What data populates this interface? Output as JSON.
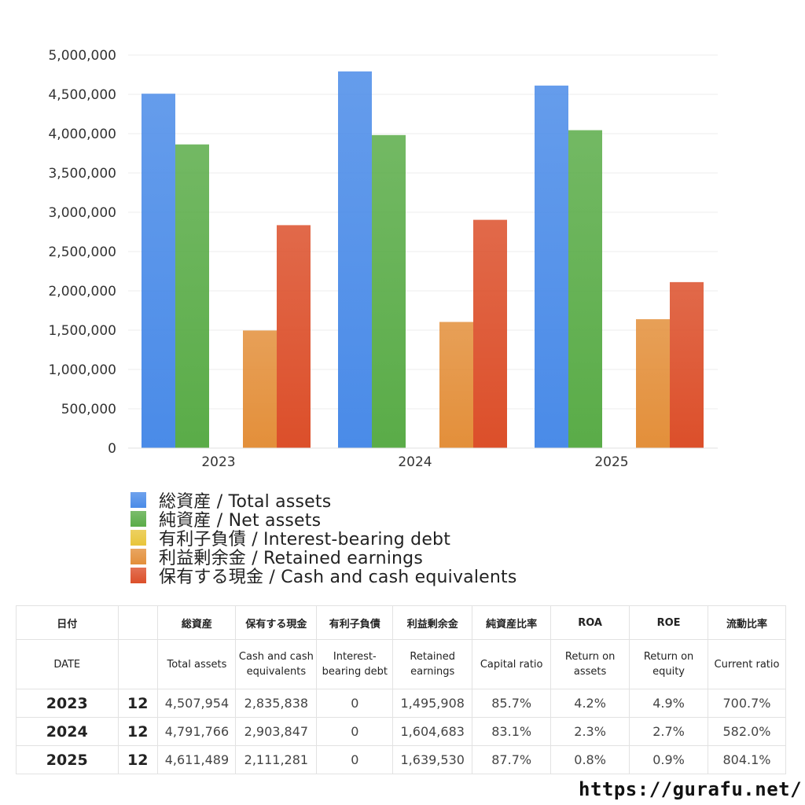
{
  "chart_data": {
    "type": "bar",
    "categories": [
      "2023",
      "2024",
      "2025"
    ],
    "series": [
      {
        "name": "総資産 / Total assets",
        "values": [
          4507954,
          4791766,
          4611489
        ],
        "color": "#4a8be8"
      },
      {
        "name": "純資産 / Net assets",
        "values": [
          3863000,
          3982000,
          4044000
        ],
        "color": "#5aac48"
      },
      {
        "name": "有利子負債 / Interest-bearing debt",
        "values": [
          0,
          0,
          0
        ],
        "color": "#e8c53a"
      },
      {
        "name": "利益剰余金 / Retained earnings",
        "values": [
          1495908,
          1604683,
          1639530
        ],
        "color": "#e38f3a"
      },
      {
        "name": "保有する現金 /  Cash and cash equivalents",
        "values": [
          2835838,
          2903847,
          2111281
        ],
        "color": "#dc4f2a"
      }
    ],
    "ylim": [
      0,
      5000000
    ],
    "yticks": [
      "0",
      "500,000",
      "1,000,000",
      "1,500,000",
      "2,000,000",
      "2,500,000",
      "3,000,000",
      "3,500,000",
      "4,000,000",
      "4,500,000",
      "5,000,000"
    ],
    "grid": true,
    "legend_position": "bottom-left"
  },
  "table": {
    "headers_ja": [
      "日付",
      "",
      "総資産",
      "保有する現金",
      "有利子負債",
      "利益剰余金",
      "純資産比率",
      "ROA",
      "ROE",
      "流動比率"
    ],
    "headers_en": [
      "DATE",
      "",
      "Total assets",
      "Cash and cash equivalents",
      "Interest-bearing debt",
      "Retained earnings",
      "Capital ratio",
      "Return on assets",
      "Return on equity",
      "Current ratio"
    ],
    "rows": [
      [
        "2023",
        "12",
        "4,507,954",
        "2,835,838",
        "0",
        "1,495,908",
        "85.7%",
        "4.2%",
        "4.9%",
        "700.7%"
      ],
      [
        "2024",
        "12",
        "4,791,766",
        "2,903,847",
        "0",
        "1,604,683",
        "83.1%",
        "2.3%",
        "2.7%",
        "582.0%"
      ],
      [
        "2025",
        "12",
        "4,611,489",
        "2,111,281",
        "0",
        "1,639,530",
        "87.7%",
        "0.8%",
        "0.9%",
        "804.1%"
      ]
    ]
  },
  "source_url": "https://gurafu.net/"
}
